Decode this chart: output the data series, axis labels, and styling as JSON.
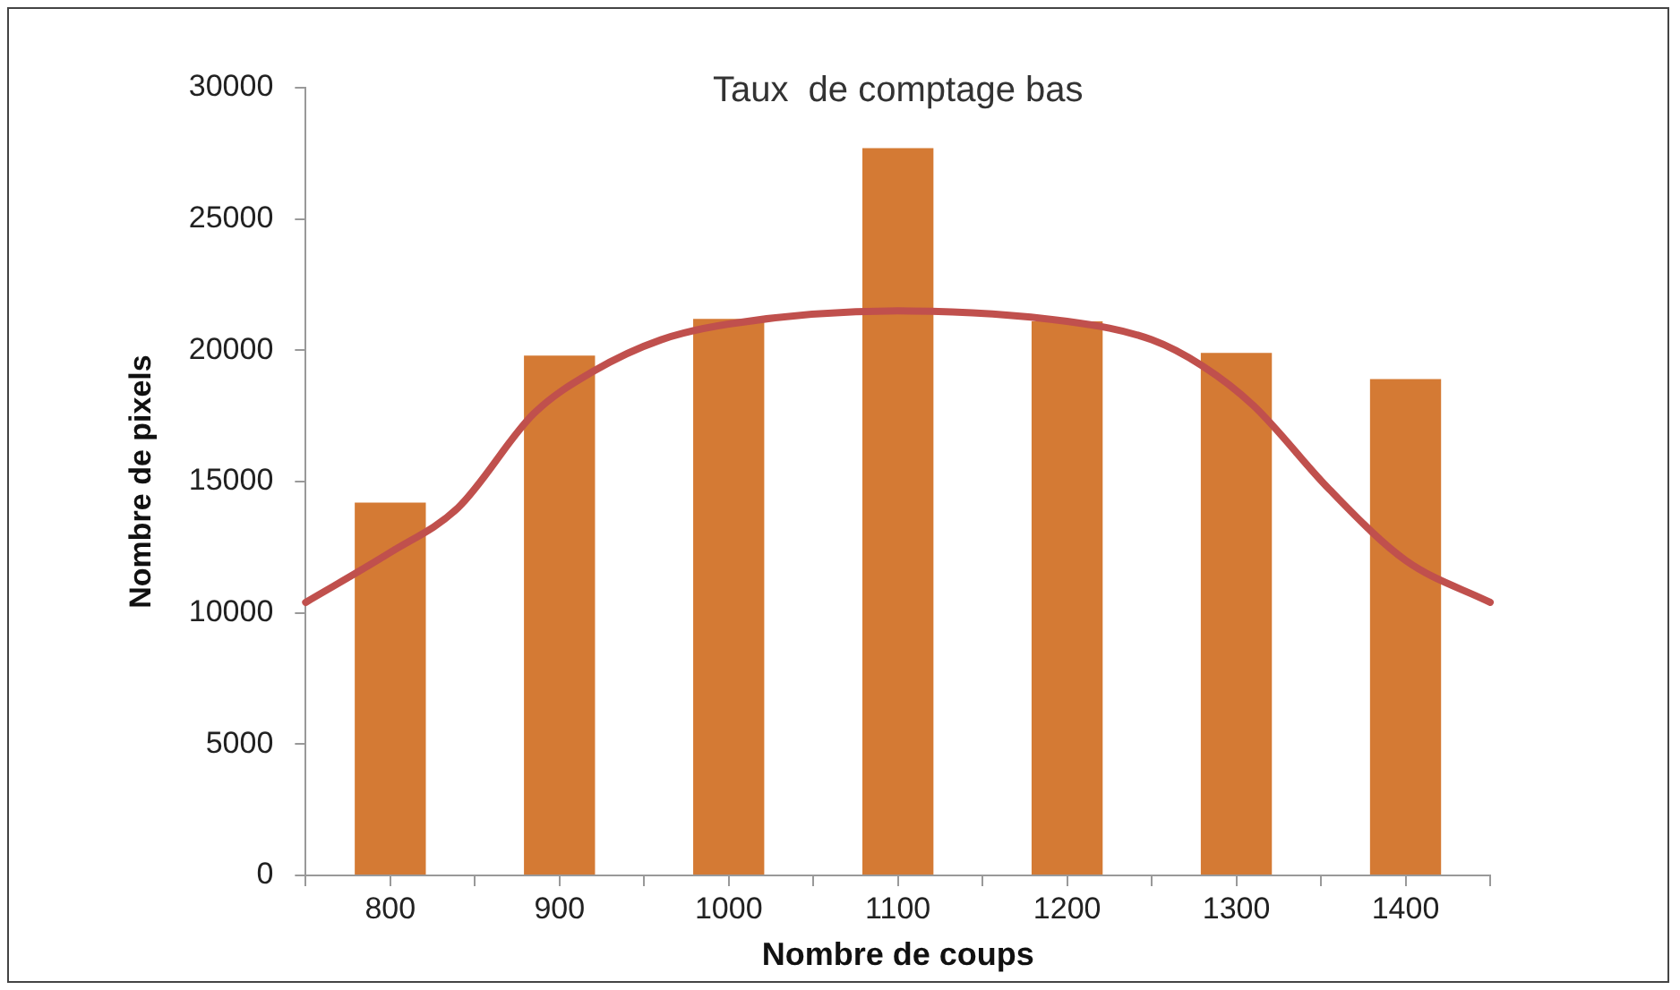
{
  "chart_data": {
    "type": "bar",
    "title": "Taux  de comptage bas",
    "xlabel": "Nombre de coups",
    "ylabel": "Nombre de pixels",
    "xlim": [
      750,
      1450
    ],
    "xticks": [
      {
        "value": 750,
        "label": null
      },
      800,
      {
        "value": 850,
        "label": null
      },
      900,
      {
        "value": 950,
        "label": null
      },
      1000,
      {
        "value": 1050,
        "label": null
      },
      1100,
      {
        "value": 1150,
        "label": null
      },
      1200,
      {
        "value": 1250,
        "label": null
      },
      1300,
      {
        "value": 1350,
        "label": null
      },
      1400,
      {
        "value": 1450,
        "label": null
      }
    ],
    "ylim": [
      0,
      30000
    ],
    "yticks": [
      0,
      5000,
      10000,
      15000,
      20000,
      25000,
      30000
    ],
    "grid": false,
    "legend": false,
    "series": [
      {
        "type": "bar",
        "color": "#d47a34",
        "x": [
          800,
          900,
          1000,
          1100,
          1200,
          1300,
          1400
        ],
        "values": [
          14200,
          19800,
          21200,
          27700,
          21100,
          19900,
          18900
        ]
      },
      {
        "type": "line",
        "color": "#c0504d",
        "marker": "none",
        "line_style": "solid",
        "x": [
          750,
          800,
          840,
          885,
          920,
          960,
          1000,
          1100,
          1200,
          1250,
          1280,
          1310,
          1355,
          1400,
          1450
        ],
        "values": [
          10400,
          12300,
          14000,
          17600,
          19200,
          20400,
          21000,
          21500,
          21100,
          20400,
          19400,
          17900,
          14700,
          12000,
          10400
        ]
      }
    ]
  }
}
